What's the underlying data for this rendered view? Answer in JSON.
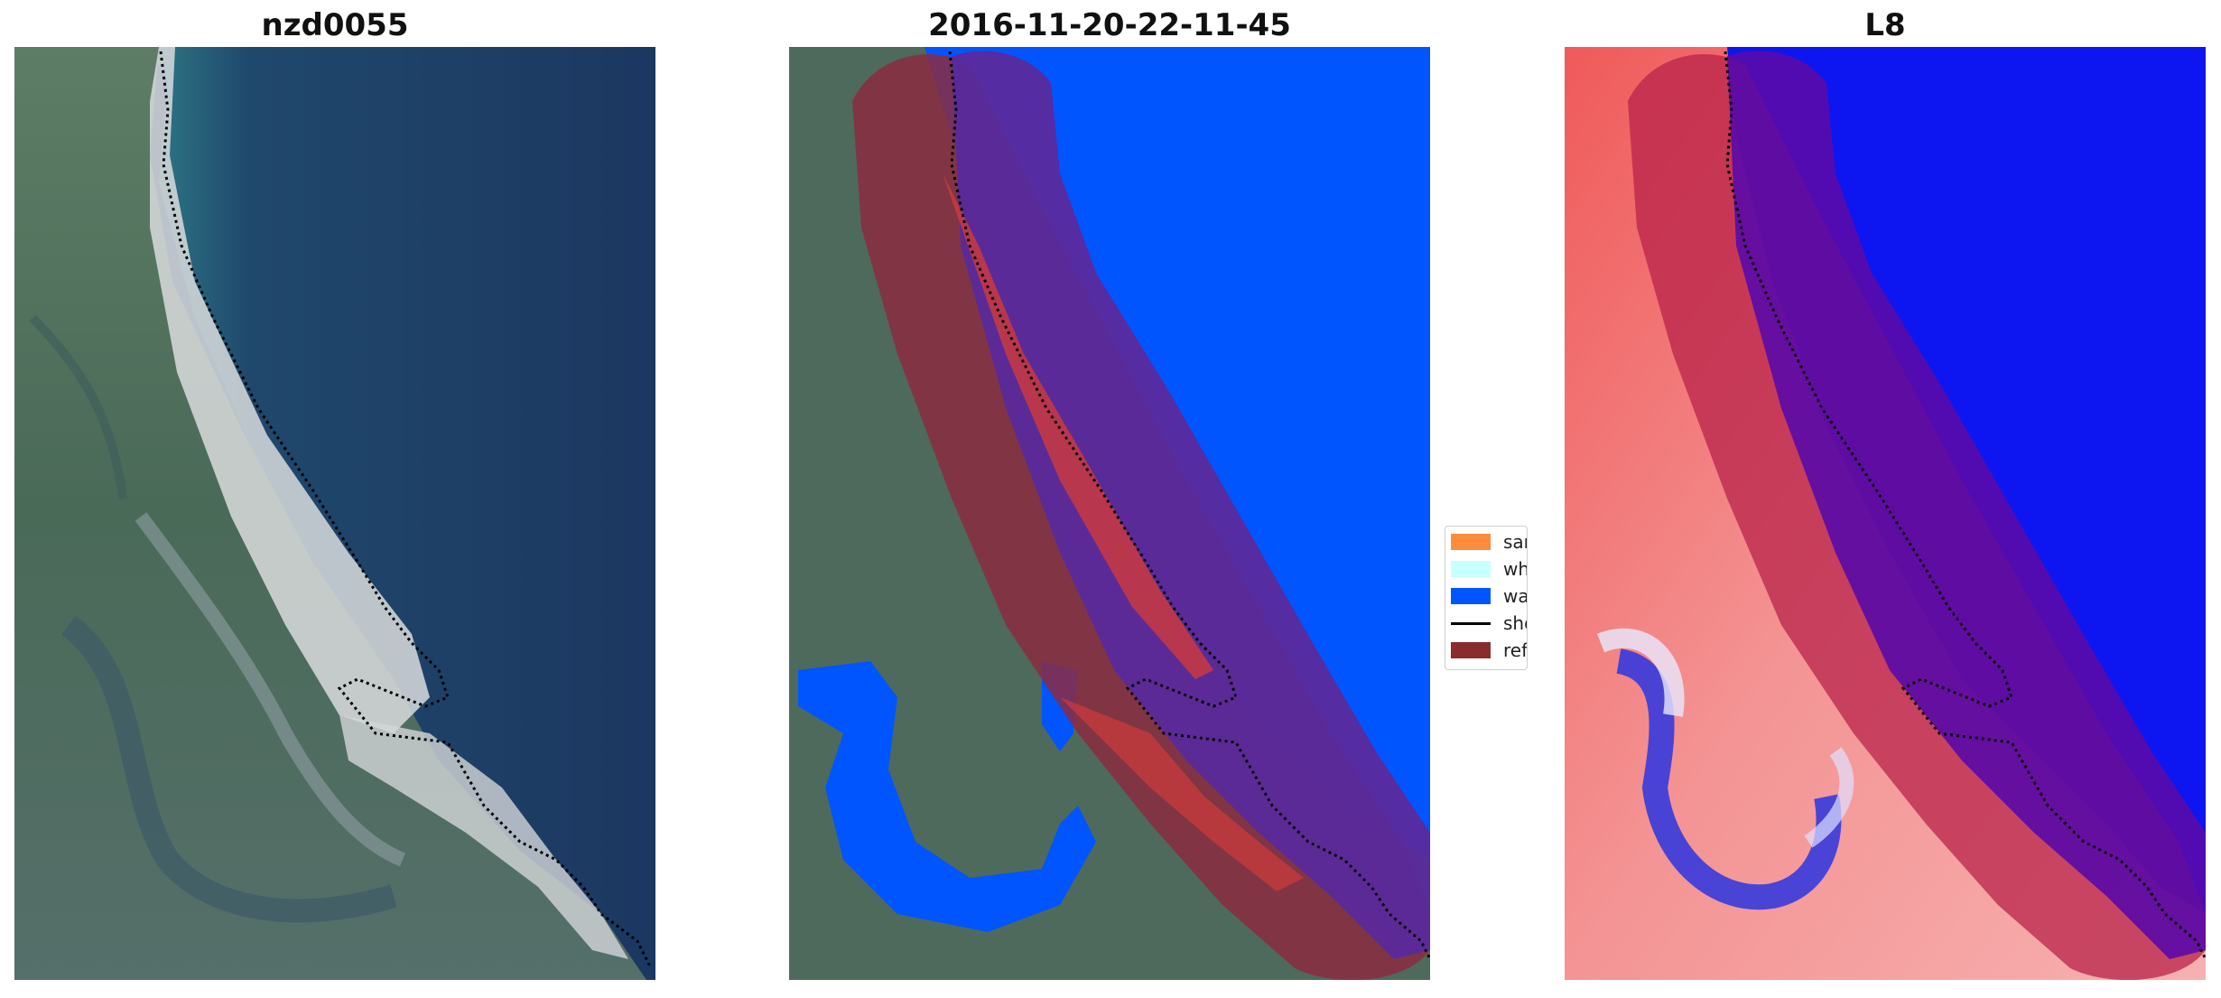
{
  "panels": [
    {
      "title": "nzd0055"
    },
    {
      "title": "2016-11-20-22-11-45"
    },
    {
      "title": "L8"
    }
  ],
  "legend": {
    "items": [
      {
        "label": "sand",
        "color": "#ff8c3c",
        "kind": "patch"
      },
      {
        "label": "whitewater",
        "color": "#c8ffff",
        "kind": "patch"
      },
      {
        "label": "water",
        "color": "#0055ff",
        "kind": "patch"
      },
      {
        "label": "shoreline",
        "color": "#000000",
        "kind": "line"
      },
      {
        "label": "reference shoreline buffer",
        "color": "#8b2c2c",
        "kind": "patch"
      }
    ]
  },
  "colors": {
    "sea": "#1d3a63",
    "land": "#4f6b5a",
    "beach": "#dfe1e2",
    "water_class": "#0055ff",
    "buffer": "#8b2c40",
    "index_land": "#f07a7a",
    "index_water": "#0d16f0"
  }
}
